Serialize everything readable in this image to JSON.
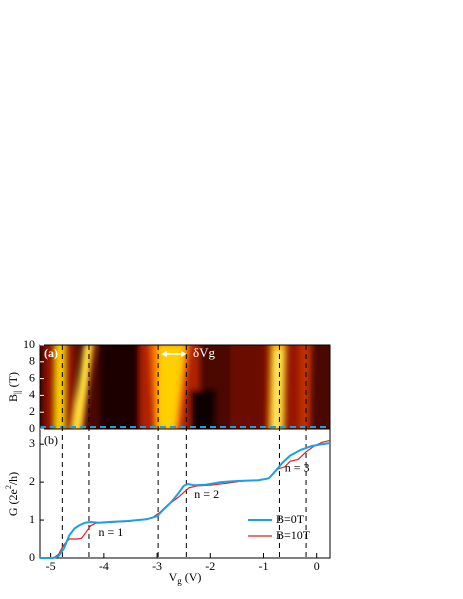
{
  "chart_data": [
    {
      "type": "heatmap",
      "panel_label": "(a)",
      "ylabel": [
        "B",
        "||",
        " (T)"
      ],
      "ylim": [
        0,
        10
      ],
      "yticks": [
        0,
        2,
        4,
        6,
        8,
        10
      ],
      "annotation": "δVg"
    },
    {
      "type": "line",
      "panel_label": "(b)",
      "ylabel": [
        "G (2e",
        "2",
        "/h)"
      ],
      "xlabel": [
        "V",
        "g",
        " (V)"
      ],
      "xlim": [
        -5.2,
        0.25
      ],
      "xticks": [
        -5,
        -4,
        -3,
        -2,
        -1,
        0
      ],
      "ylim": [
        0,
        3.4
      ],
      "yticks": [
        0,
        1,
        2,
        3
      ],
      "dashed_lines": [
        -4.78,
        -4.28,
        -2.98,
        -2.45,
        -0.7,
        -0.2
      ],
      "annotations": [
        {
          "text": "n = 1",
          "x": -4.1,
          "y": 0.65
        },
        {
          "text": "n = 2",
          "x": -2.3,
          "y": 1.65
        },
        {
          "text": "n = 3",
          "x": -0.6,
          "y": 2.35
        }
      ],
      "series": [
        {
          "name": "B=0T",
          "color": "#1aa0e8",
          "x": [
            -5.2,
            -4.95,
            -4.85,
            -4.75,
            -4.65,
            -4.55,
            -4.45,
            -4.35,
            -4.25,
            -4.1,
            -3.9,
            -3.5,
            -3.2,
            -3.0,
            -2.9,
            -2.75,
            -2.6,
            -2.5,
            -2.42,
            -2.3,
            -2.1,
            -1.8,
            -1.5,
            -1.1,
            -0.9,
            -0.8,
            -0.65,
            -0.5,
            -0.3,
            -0.1,
            0.1,
            0.25
          ],
          "values": [
            0,
            0,
            0.05,
            0.25,
            0.6,
            0.78,
            0.87,
            0.93,
            0.95,
            0.93,
            0.95,
            0.98,
            1.02,
            1.1,
            1.25,
            1.45,
            1.7,
            1.9,
            1.95,
            1.92,
            1.93,
            2.0,
            2.03,
            2.05,
            2.1,
            2.25,
            2.5,
            2.7,
            2.85,
            2.95,
            3.0,
            3.03
          ]
        },
        {
          "name": "B=10T",
          "color": "#e02020",
          "x": [
            -5.2,
            -4.95,
            -4.85,
            -4.75,
            -4.65,
            -4.5,
            -4.42,
            -4.35,
            -4.25,
            -4.15,
            -4.0,
            -3.5,
            -3.1,
            -2.95,
            -2.8,
            -2.7,
            -2.6,
            -2.48,
            -2.4,
            -2.25,
            -2.0,
            -1.7,
            -1.4,
            -1.1,
            -0.9,
            -0.8,
            -0.72,
            -0.6,
            -0.5,
            -0.35,
            -0.2,
            -0.05,
            0.1,
            0.25
          ],
          "values": [
            0,
            0,
            0.1,
            0.35,
            0.5,
            0.5,
            0.52,
            0.65,
            0.85,
            0.92,
            0.93,
            0.97,
            1.05,
            1.2,
            1.4,
            1.5,
            1.6,
            1.75,
            1.85,
            1.9,
            1.92,
            1.97,
            2.03,
            2.05,
            2.1,
            2.25,
            2.35,
            2.4,
            2.55,
            2.6,
            2.8,
            2.95,
            3.05,
            3.1
          ]
        }
      ]
    }
  ]
}
